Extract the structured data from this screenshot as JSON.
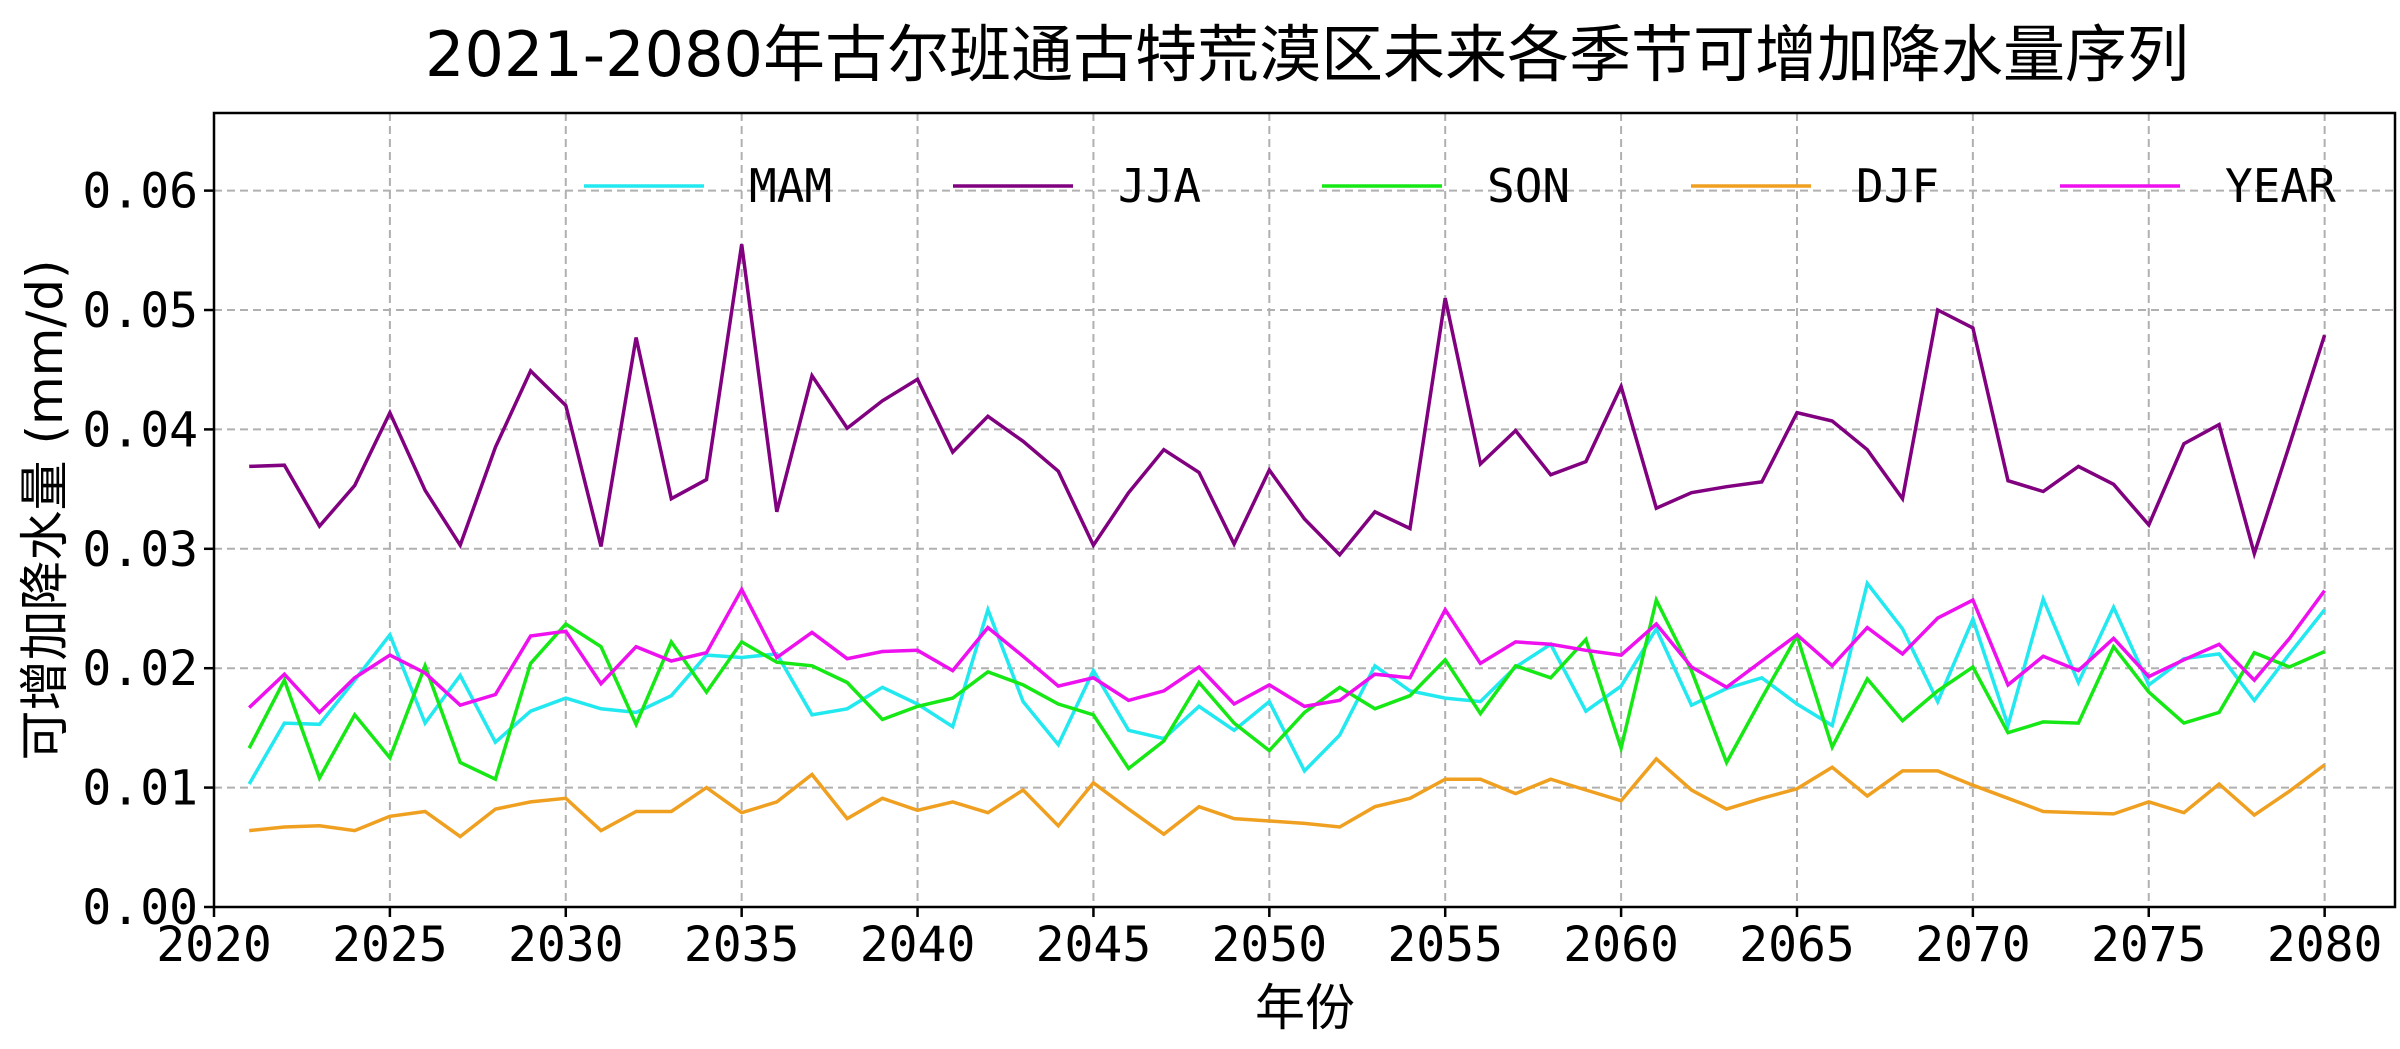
{
  "chart_data": {
    "type": "line",
    "title": "2021-2080年古尔班通古特荒漠区未来各季节可增加降水量序列",
    "xlabel": "年份",
    "ylabel": "可增加降水量 (mm/d)",
    "xlim": [
      2020,
      2082
    ],
    "ylim": [
      0,
      0.0665
    ],
    "xticks": [
      "2020",
      "2025",
      "2030",
      "2035",
      "2040",
      "2045",
      "2050",
      "2055",
      "2060",
      "2065",
      "2070",
      "2075",
      "2080"
    ],
    "yticks": [
      "0.00",
      "0.01",
      "0.02",
      "0.03",
      "0.04",
      "0.05",
      "0.06"
    ],
    "grid": true,
    "legend_position": "top",
    "x_start": 2021,
    "series": [
      {
        "name": "MAM",
        "color": "#22e8f0",
        "values": [
          0.0103,
          0.0154,
          0.0153,
          0.019,
          0.0228,
          0.0154,
          0.0194,
          0.0138,
          0.0164,
          0.0175,
          0.0166,
          0.0163,
          0.0177,
          0.0211,
          0.0209,
          0.0212,
          0.0161,
          0.0166,
          0.0184,
          0.017,
          0.0151,
          0.0249,
          0.0172,
          0.0136,
          0.0198,
          0.0148,
          0.0141,
          0.0168,
          0.0148,
          0.0172,
          0.0114,
          0.0144,
          0.0202,
          0.0181,
          0.0175,
          0.0172,
          0.0201,
          0.022,
          0.0164,
          0.0185,
          0.0233,
          0.0169,
          0.0183,
          0.0192,
          0.017,
          0.0152,
          0.0271,
          0.0233,
          0.0172,
          0.0241,
          0.0152,
          0.0258,
          0.0188,
          0.0251,
          0.0186,
          0.0208,
          0.0212,
          0.0173,
          0.0212,
          0.0249
        ]
      },
      {
        "name": "JJA",
        "color": "#800080",
        "values": [
          0.0369,
          0.037,
          0.0319,
          0.0353,
          0.0414,
          0.0349,
          0.0303,
          0.0385,
          0.0449,
          0.042,
          0.0302,
          0.0477,
          0.0342,
          0.0358,
          0.0555,
          0.0331,
          0.0445,
          0.0401,
          0.0424,
          0.0442,
          0.0381,
          0.0411,
          0.039,
          0.0365,
          0.0303,
          0.0347,
          0.0383,
          0.0364,
          0.0304,
          0.0366,
          0.0325,
          0.0295,
          0.0331,
          0.0317,
          0.051,
          0.0371,
          0.0399,
          0.0362,
          0.0373,
          0.0436,
          0.0334,
          0.0347,
          0.0352,
          0.0356,
          0.0414,
          0.0407,
          0.0383,
          0.0342,
          0.05,
          0.0485,
          0.0357,
          0.0348,
          0.0369,
          0.0354,
          0.032,
          0.0388,
          0.0404,
          0.0296,
          0.0387,
          0.0479
        ]
      },
      {
        "name": "SON",
        "color": "#16e816",
        "values": [
          0.0133,
          0.019,
          0.0108,
          0.0161,
          0.0125,
          0.0202,
          0.0121,
          0.0107,
          0.0204,
          0.0237,
          0.0218,
          0.0153,
          0.0222,
          0.018,
          0.0222,
          0.0205,
          0.0202,
          0.0188,
          0.0157,
          0.0168,
          0.0175,
          0.0197,
          0.0186,
          0.017,
          0.0161,
          0.0116,
          0.0139,
          0.0188,
          0.0154,
          0.0131,
          0.0163,
          0.0184,
          0.0166,
          0.0177,
          0.0207,
          0.0162,
          0.0202,
          0.0192,
          0.0224,
          0.0133,
          0.0257,
          0.0198,
          0.0121,
          0.0175,
          0.0227,
          0.0134,
          0.0191,
          0.0156,
          0.0181,
          0.0201,
          0.0146,
          0.0155,
          0.0154,
          0.0218,
          0.018,
          0.0154,
          0.0163,
          0.0213,
          0.0201,
          0.0214
        ]
      },
      {
        "name": "DJF",
        "color": "#f0a020",
        "values": [
          0.0064,
          0.0067,
          0.0068,
          0.0064,
          0.0076,
          0.008,
          0.0059,
          0.0082,
          0.0088,
          0.0091,
          0.0064,
          0.008,
          0.008,
          0.01,
          0.0079,
          0.0088,
          0.0111,
          0.0074,
          0.0091,
          0.0081,
          0.0088,
          0.0079,
          0.0098,
          0.0068,
          0.0104,
          0.0082,
          0.0061,
          0.0084,
          0.0074,
          0.0072,
          0.007,
          0.0067,
          0.0084,
          0.0091,
          0.0107,
          0.0107,
          0.0095,
          0.0107,
          0.0098,
          0.0089,
          0.0124,
          0.0098,
          0.0082,
          0.0091,
          0.0099,
          0.0117,
          0.0093,
          0.0114,
          0.0114,
          0.0102,
          0.0091,
          0.008,
          0.0079,
          0.0078,
          0.0088,
          0.0079,
          0.0103,
          0.0077,
          0.0097,
          0.0119
        ]
      },
      {
        "name": "YEAR",
        "color": "#ee10ee",
        "values": [
          0.0167,
          0.0195,
          0.0163,
          0.0192,
          0.0211,
          0.0196,
          0.0169,
          0.0178,
          0.0227,
          0.0231,
          0.0187,
          0.0218,
          0.0206,
          0.0213,
          0.0266,
          0.0209,
          0.023,
          0.0208,
          0.0214,
          0.0215,
          0.0198,
          0.0234,
          0.021,
          0.0185,
          0.0192,
          0.0173,
          0.0181,
          0.0201,
          0.017,
          0.0186,
          0.0168,
          0.0173,
          0.0195,
          0.0192,
          0.0249,
          0.0204,
          0.0222,
          0.022,
          0.0215,
          0.0211,
          0.0237,
          0.0201,
          0.0184,
          0.0206,
          0.0228,
          0.0202,
          0.0234,
          0.0212,
          0.0242,
          0.0257,
          0.0186,
          0.021,
          0.0198,
          0.0225,
          0.0193,
          0.0207,
          0.022,
          0.019,
          0.0225,
          0.0265
        ]
      }
    ]
  }
}
